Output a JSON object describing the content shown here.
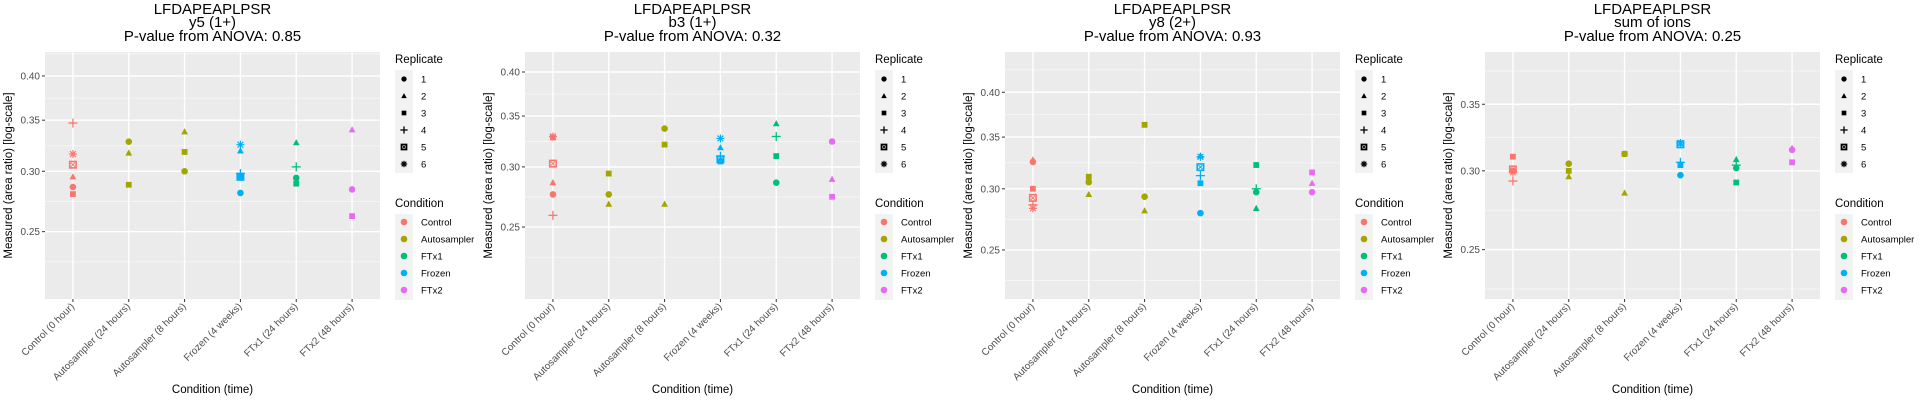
{
  "figure": {
    "peptide": "LFDAPEAPLPSR",
    "xlabel": "Condition (time)",
    "ylabel": "Measured (area ratio) [log-scale]"
  },
  "legend": {
    "replicate_title": "Replicate",
    "replicates": [
      {
        "label": "1",
        "shape": "circle"
      },
      {
        "label": "2",
        "shape": "triangle"
      },
      {
        "label": "3",
        "shape": "square"
      },
      {
        "label": "4",
        "shape": "plus"
      },
      {
        "label": "5",
        "shape": "square-cross"
      },
      {
        "label": "6",
        "shape": "asterisk"
      }
    ],
    "condition_title": "Condition",
    "conditions": [
      {
        "label": "Control",
        "color": "#F8766D"
      },
      {
        "label": "Autosampler",
        "color": "#A3A500"
      },
      {
        "label": "FTx1",
        "color": "#00BF7D"
      },
      {
        "label": "Frozen",
        "color": "#00B0F6"
      },
      {
        "label": "FTx2",
        "color": "#E76BF3"
      }
    ]
  },
  "chart_data": [
    {
      "type": "scatter",
      "title": "LFDAPEAPLPSR",
      "subtitle": "y5 (1+)",
      "pvalue_text": "P-value from ANOVA: 0.85",
      "xlabel": "Condition (time)",
      "ylabel": "Measured (area ratio) [log-scale]",
      "yscale": "log",
      "ylim": [
        0.204,
        0.43
      ],
      "yticks": [
        0.25,
        0.3,
        0.35,
        0.4
      ],
      "ytick_labels": [
        "0.25",
        "0.30",
        "0.35",
        "0.40"
      ],
      "grid": true,
      "legend_position": "right",
      "categories": [
        "Control (0 hour)",
        "Autosampler (24 hours)",
        "Autosampler (8 hours)",
        "Frozen (4 weeks)",
        "FTx1 (24 hours)",
        "FTx2 (48 hours)"
      ],
      "points": [
        {
          "x": "Control (0 hour)",
          "condition": "Control",
          "replicate": 1,
          "y": 0.286
        },
        {
          "x": "Control (0 hour)",
          "condition": "Control",
          "replicate": 2,
          "y": 0.295
        },
        {
          "x": "Control (0 hour)",
          "condition": "Control",
          "replicate": 3,
          "y": 0.28
        },
        {
          "x": "Control (0 hour)",
          "condition": "Control",
          "replicate": 4,
          "y": 0.347
        },
        {
          "x": "Control (0 hour)",
          "condition": "Control",
          "replicate": 5,
          "y": 0.306
        },
        {
          "x": "Control (0 hour)",
          "condition": "Control",
          "replicate": 6,
          "y": 0.316
        },
        {
          "x": "Autosampler (24 hours)",
          "condition": "Autosampler",
          "replicate": 1,
          "y": 0.328
        },
        {
          "x": "Autosampler (24 hours)",
          "condition": "Autosampler",
          "replicate": 2,
          "y": 0.317
        },
        {
          "x": "Autosampler (24 hours)",
          "condition": "Autosampler",
          "replicate": 3,
          "y": 0.288
        },
        {
          "x": "Autosampler (8 hours)",
          "condition": "Autosampler",
          "replicate": 1,
          "y": 0.3
        },
        {
          "x": "Autosampler (8 hours)",
          "condition": "Autosampler",
          "replicate": 2,
          "y": 0.338
        },
        {
          "x": "Autosampler (8 hours)",
          "condition": "Autosampler",
          "replicate": 3,
          "y": 0.318
        },
        {
          "x": "Frozen (4 weeks)",
          "condition": "Frozen",
          "replicate": 1,
          "y": 0.281
        },
        {
          "x": "Frozen (4 weeks)",
          "condition": "Frozen",
          "replicate": 2,
          "y": 0.319
        },
        {
          "x": "Frozen (4 weeks)",
          "condition": "Frozen",
          "replicate": 3,
          "y": 0.295
        },
        {
          "x": "Frozen (4 weeks)",
          "condition": "Frozen",
          "replicate": 4,
          "y": 0.298
        },
        {
          "x": "Frozen (4 weeks)",
          "condition": "Frozen",
          "replicate": 5,
          "y": 0.295
        },
        {
          "x": "Frozen (4 weeks)",
          "condition": "Frozen",
          "replicate": 6,
          "y": 0.325
        },
        {
          "x": "FTx1 (24 hours)",
          "condition": "FTx1",
          "replicate": 1,
          "y": 0.294
        },
        {
          "x": "FTx1 (24 hours)",
          "condition": "FTx1",
          "replicate": 2,
          "y": 0.327
        },
        {
          "x": "FTx1 (24 hours)",
          "condition": "FTx1",
          "replicate": 3,
          "y": 0.289
        },
        {
          "x": "FTx1 (24 hours)",
          "condition": "FTx1",
          "replicate": 4,
          "y": 0.304
        },
        {
          "x": "FTx2 (48 hours)",
          "condition": "FTx2",
          "replicate": 1,
          "y": 0.284
        },
        {
          "x": "FTx2 (48 hours)",
          "condition": "FTx2",
          "replicate": 2,
          "y": 0.34
        },
        {
          "x": "FTx2 (48 hours)",
          "condition": "FTx2",
          "replicate": 3,
          "y": 0.262
        }
      ]
    },
    {
      "type": "scatter",
      "title": "LFDAPEAPLPSR",
      "subtitle": "b3 (1+)",
      "pvalue_text": "P-value from ANOVA: 0.32",
      "xlabel": "Condition (time)",
      "ylabel": "Measured (area ratio) [log-scale]",
      "yscale": "log",
      "ylim": [
        0.201,
        0.425
      ],
      "yticks": [
        0.25,
        0.3,
        0.35,
        0.4
      ],
      "ytick_labels": [
        "0.25",
        "0.30",
        "0.35",
        "0.40"
      ],
      "grid": true,
      "legend_position": "right",
      "categories": [
        "Control (0 hour)",
        "Autosampler (24 hours)",
        "Autosampler (8 hours)",
        "Frozen (4 weeks)",
        "FTx1 (24 hours)",
        "FTx2 (48 hours)"
      ],
      "points": [
        {
          "x": "Control (0 hour)",
          "condition": "Control",
          "replicate": 1,
          "y": 0.276
        },
        {
          "x": "Control (0 hour)",
          "condition": "Control",
          "replicate": 2,
          "y": 0.286
        },
        {
          "x": "Control (0 hour)",
          "condition": "Control",
          "replicate": 3,
          "y": 0.328
        },
        {
          "x": "Control (0 hour)",
          "condition": "Control",
          "replicate": 4,
          "y": 0.259
        },
        {
          "x": "Control (0 hour)",
          "condition": "Control",
          "replicate": 5,
          "y": 0.303
        },
        {
          "x": "Control (0 hour)",
          "condition": "Control",
          "replicate": 6,
          "y": 0.329
        },
        {
          "x": "Autosampler (24 hours)",
          "condition": "Autosampler",
          "replicate": 1,
          "y": 0.276
        },
        {
          "x": "Autosampler (24 hours)",
          "condition": "Autosampler",
          "replicate": 2,
          "y": 0.268
        },
        {
          "x": "Autosampler (24 hours)",
          "condition": "Autosampler",
          "replicate": 3,
          "y": 0.294
        },
        {
          "x": "Autosampler (8 hours)",
          "condition": "Autosampler",
          "replicate": 1,
          "y": 0.337
        },
        {
          "x": "Autosampler (8 hours)",
          "condition": "Autosampler",
          "replicate": 2,
          "y": 0.268
        },
        {
          "x": "Autosampler (8 hours)",
          "condition": "Autosampler",
          "replicate": 3,
          "y": 0.321
        },
        {
          "x": "Frozen (4 weeks)",
          "condition": "Frozen",
          "replicate": 2,
          "y": 0.318
        },
        {
          "x": "Frozen (4 weeks)",
          "condition": "Frozen",
          "replicate": 3,
          "y": 0.305
        },
        {
          "x": "Frozen (4 weeks)",
          "condition": "Frozen",
          "replicate": 4,
          "y": 0.31
        },
        {
          "x": "Frozen (4 weeks)",
          "condition": "Frozen",
          "replicate": 5,
          "y": 0.307
        },
        {
          "x": "Frozen (4 weeks)",
          "condition": "Frozen",
          "replicate": 6,
          "y": 0.327
        },
        {
          "x": "FTx1 (24 hours)",
          "condition": "FTx1",
          "replicate": 1,
          "y": 0.286
        },
        {
          "x": "FTx1 (24 hours)",
          "condition": "FTx1",
          "replicate": 2,
          "y": 0.342
        },
        {
          "x": "FTx1 (24 hours)",
          "condition": "FTx1",
          "replicate": 3,
          "y": 0.31
        },
        {
          "x": "FTx1 (24 hours)",
          "condition": "FTx1",
          "replicate": 4,
          "y": 0.329
        },
        {
          "x": "FTx2 (48 hours)",
          "condition": "FTx2",
          "replicate": 1,
          "y": 0.324
        },
        {
          "x": "FTx2 (48 hours)",
          "condition": "FTx2",
          "replicate": 2,
          "y": 0.289
        },
        {
          "x": "FTx2 (48 hours)",
          "condition": "FTx2",
          "replicate": 3,
          "y": 0.274
        }
      ]
    },
    {
      "type": "scatter",
      "title": "LFDAPEAPLPSR",
      "subtitle": "y8 (2+)",
      "pvalue_text": "P-value from ANOVA: 0.93",
      "xlabel": "Condition (time)",
      "ylabel": "Measured (area ratio) [log-scale]",
      "yscale": "log",
      "ylim": [
        0.216,
        0.451
      ],
      "yticks": [
        0.25,
        0.3,
        0.35,
        0.4
      ],
      "ytick_labels": [
        "0.25",
        "0.30",
        "0.35",
        "0.40"
      ],
      "grid": true,
      "legend_position": "right",
      "categories": [
        "Control (0 hour)",
        "Autosampler (24 hours)",
        "Autosampler (8 hours)",
        "Frozen (4 weeks)",
        "FTx1 (24 hours)",
        "FTx2 (48 hours)"
      ],
      "points": [
        {
          "x": "Control (0 hour)",
          "condition": "Control",
          "replicate": 1,
          "y": 0.325
        },
        {
          "x": "Control (0 hour)",
          "condition": "Control",
          "replicate": 2,
          "y": 0.327
        },
        {
          "x": "Control (0 hour)",
          "condition": "Control",
          "replicate": 3,
          "y": 0.3
        },
        {
          "x": "Control (0 hour)",
          "condition": "Control",
          "replicate": 4,
          "y": 0.286
        },
        {
          "x": "Control (0 hour)",
          "condition": "Control",
          "replicate": 5,
          "y": 0.292
        },
        {
          "x": "Control (0 hour)",
          "condition": "Control",
          "replicate": 6,
          "y": 0.283
        },
        {
          "x": "Autosampler (24 hours)",
          "condition": "Autosampler",
          "replicate": 1,
          "y": 0.306
        },
        {
          "x": "Autosampler (24 hours)",
          "condition": "Autosampler",
          "replicate": 2,
          "y": 0.295
        },
        {
          "x": "Autosampler (24 hours)",
          "condition": "Autosampler",
          "replicate": 3,
          "y": 0.311
        },
        {
          "x": "Autosampler (8 hours)",
          "condition": "Autosampler",
          "replicate": 1,
          "y": 0.293
        },
        {
          "x": "Autosampler (8 hours)",
          "condition": "Autosampler",
          "replicate": 2,
          "y": 0.281
        },
        {
          "x": "Autosampler (8 hours)",
          "condition": "Autosampler",
          "replicate": 3,
          "y": 0.363
        },
        {
          "x": "Frozen (4 weeks)",
          "condition": "Frozen",
          "replicate": 1,
          "y": 0.279
        },
        {
          "x": "Frozen (4 weeks)",
          "condition": "Frozen",
          "replicate": 2,
          "y": 0.331
        },
        {
          "x": "Frozen (4 weeks)",
          "condition": "Frozen",
          "replicate": 3,
          "y": 0.305
        },
        {
          "x": "Frozen (4 weeks)",
          "condition": "Frozen",
          "replicate": 4,
          "y": 0.312
        },
        {
          "x": "Frozen (4 weeks)",
          "condition": "Frozen",
          "replicate": 5,
          "y": 0.32
        },
        {
          "x": "Frozen (4 weeks)",
          "condition": "Frozen",
          "replicate": 6,
          "y": 0.33
        },
        {
          "x": "FTx1 (24 hours)",
          "condition": "FTx1",
          "replicate": 1,
          "y": 0.297
        },
        {
          "x": "FTx1 (24 hours)",
          "condition": "FTx1",
          "replicate": 2,
          "y": 0.283
        },
        {
          "x": "FTx1 (24 hours)",
          "condition": "FTx1",
          "replicate": 3,
          "y": 0.322
        },
        {
          "x": "FTx1 (24 hours)",
          "condition": "FTx1",
          "replicate": 4,
          "y": 0.3
        },
        {
          "x": "FTx2 (48 hours)",
          "condition": "FTx2",
          "replicate": 1,
          "y": 0.297
        },
        {
          "x": "FTx2 (48 hours)",
          "condition": "FTx2",
          "replicate": 2,
          "y": 0.305
        },
        {
          "x": "FTx2 (48 hours)",
          "condition": "FTx2",
          "replicate": 3,
          "y": 0.315
        }
      ]
    },
    {
      "type": "scatter",
      "title": "LFDAPEAPLPSR",
      "subtitle": "sum of ions",
      "pvalue_text": "P-value from ANOVA: 0.25",
      "xlabel": "Condition (time)",
      "ylabel": "Measured (area ratio) [log-scale]",
      "yscale": "log",
      "ylim": [
        0.223,
        0.395
      ],
      "yticks": [
        0.25,
        0.3,
        0.35
      ],
      "ytick_labels": [
        "0.25",
        "0.30",
        "0.35"
      ],
      "grid": true,
      "legend_position": "right",
      "categories": [
        "Control (0 hour)",
        "Autosampler (24 hours)",
        "Autosampler (8 hours)",
        "Frozen (4 weeks)",
        "FTx1 (24 hours)",
        "FTx2 (48 hours)"
      ],
      "points": [
        {
          "x": "Control (0 hour)",
          "condition": "Control",
          "replicate": 1,
          "y": 0.3
        },
        {
          "x": "Control (0 hour)",
          "condition": "Control",
          "replicate": 3,
          "y": 0.31
        },
        {
          "x": "Control (0 hour)",
          "condition": "Control",
          "replicate": 4,
          "y": 0.293
        },
        {
          "x": "Control (0 hour)",
          "condition": "Control",
          "replicate": 5,
          "y": 0.301
        },
        {
          "x": "Control (0 hour)",
          "condition": "Control",
          "replicate": 6,
          "y": 0.299
        },
        {
          "x": "Autosampler (24 hours)",
          "condition": "Autosampler",
          "replicate": 1,
          "y": 0.305
        },
        {
          "x": "Autosampler (24 hours)",
          "condition": "Autosampler",
          "replicate": 2,
          "y": 0.296
        },
        {
          "x": "Autosampler (24 hours)",
          "condition": "Autosampler",
          "replicate": 3,
          "y": 0.3
        },
        {
          "x": "Autosampler (8 hours)",
          "condition": "Autosampler",
          "replicate": 1,
          "y": 0.312
        },
        {
          "x": "Autosampler (8 hours)",
          "condition": "Autosampler",
          "replicate": 2,
          "y": 0.285
        },
        {
          "x": "Autosampler (8 hours)",
          "condition": "Autosampler",
          "replicate": 3,
          "y": 0.312
        },
        {
          "x": "Frozen (4 weeks)",
          "condition": "Frozen",
          "replicate": 1,
          "y": 0.297
        },
        {
          "x": "Frozen (4 weeks)",
          "condition": "Frozen",
          "replicate": 3,
          "y": 0.304
        },
        {
          "x": "Frozen (4 weeks)",
          "condition": "Frozen",
          "replicate": 4,
          "y": 0.306
        },
        {
          "x": "Frozen (4 weeks)",
          "condition": "Frozen",
          "replicate": 5,
          "y": 0.319
        },
        {
          "x": "Frozen (4 weeks)",
          "condition": "Frozen",
          "replicate": 6,
          "y": 0.32
        },
        {
          "x": "FTx1 (24 hours)",
          "condition": "FTx1",
          "replicate": 1,
          "y": 0.302
        },
        {
          "x": "FTx1 (24 hours)",
          "condition": "FTx1",
          "replicate": 2,
          "y": 0.308
        },
        {
          "x": "FTx1 (24 hours)",
          "condition": "FTx1",
          "replicate": 3,
          "y": 0.292
        },
        {
          "x": "FTx1 (24 hours)",
          "condition": "FTx1",
          "replicate": 4,
          "y": 0.304
        },
        {
          "x": "FTx2 (48 hours)",
          "condition": "FTx2",
          "replicate": 1,
          "y": 0.315
        },
        {
          "x": "FTx2 (48 hours)",
          "condition": "FTx2",
          "replicate": 2,
          "y": 0.316
        },
        {
          "x": "FTx2 (48 hours)",
          "condition": "FTx2",
          "replicate": 3,
          "y": 0.306
        }
      ]
    }
  ]
}
